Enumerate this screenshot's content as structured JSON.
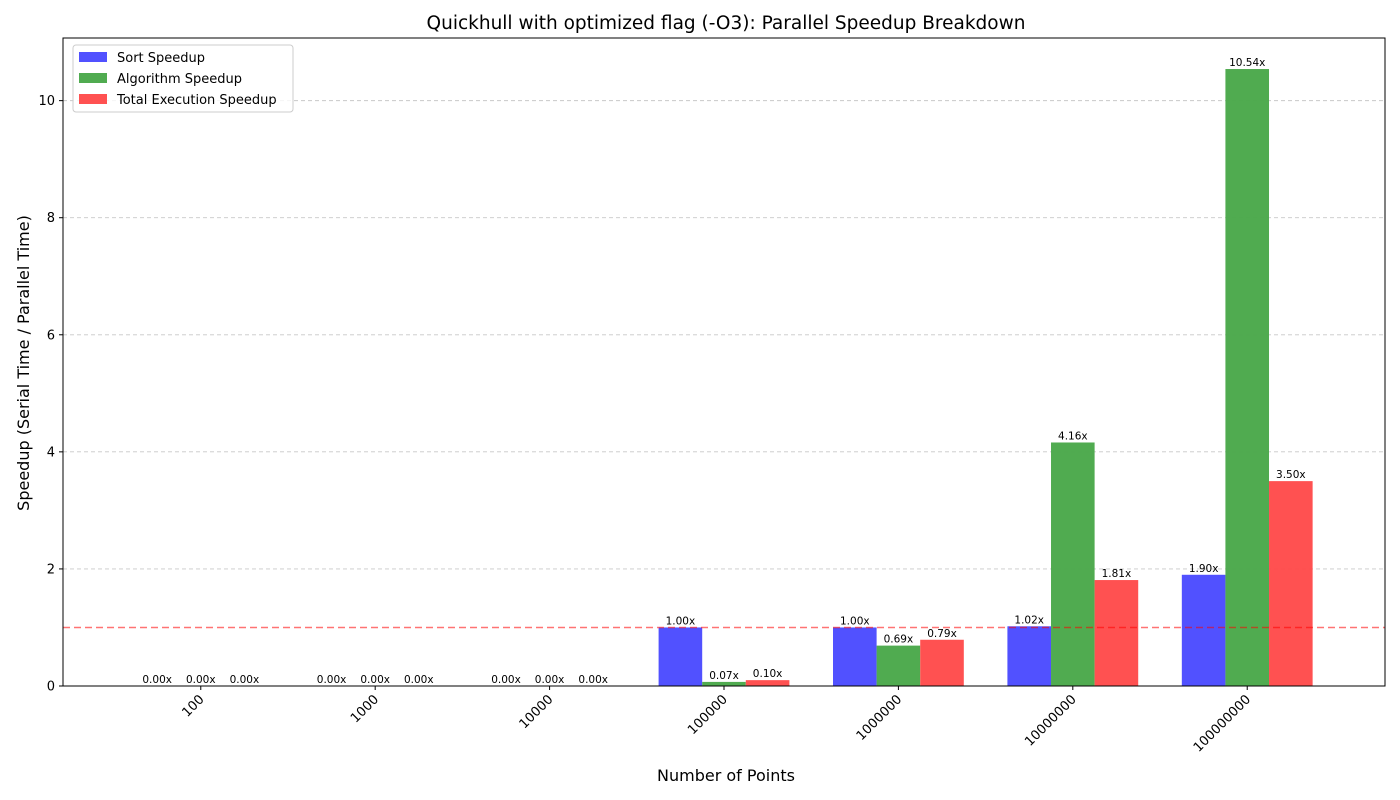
{
  "chart_data": {
    "type": "bar",
    "title": "Quickhull with optimized flag (-O3): Parallel Speedup Breakdown",
    "xlabel": "Number of Points",
    "ylabel": "Speedup (Serial Time / Parallel Time)",
    "categories": [
      "100",
      "1000",
      "10000",
      "100000",
      "1000000",
      "10000000",
      "100000000"
    ],
    "series": [
      {
        "name": "Sort Speedup",
        "color": "#4b4bff",
        "values": [
          0.0,
          0.0,
          0.0,
          1.0,
          1.0,
          1.02,
          1.9
        ],
        "labels": [
          "0.00x",
          "0.00x",
          "0.00x",
          "1.00x",
          "1.00x",
          "1.02x",
          "1.90x"
        ]
      },
      {
        "name": "Algorithm Speedup",
        "color": "#4aa84a",
        "values": [
          0.0,
          0.0,
          0.0,
          0.07,
          0.69,
          4.16,
          10.54
        ],
        "labels": [
          "0.00x",
          "0.00x",
          "0.00x",
          "0.07x",
          "0.69x",
          "4.16x",
          "10.54x"
        ]
      },
      {
        "name": "Total Execution Speedup",
        "color": "#ff4b4b",
        "values": [
          0.0,
          0.0,
          0.0,
          0.1,
          0.79,
          1.81,
          3.5
        ],
        "labels": [
          "0.00x",
          "0.00x",
          "0.00x",
          "0.10x",
          "0.79x",
          "1.81x",
          "3.50x"
        ]
      }
    ],
    "ylim": [
      0,
      11.07
    ],
    "yticks": [
      0,
      2,
      4,
      6,
      8,
      10
    ],
    "ytick_labels": [
      "0",
      "2",
      "4",
      "6",
      "8",
      "10"
    ],
    "reference_line": {
      "y": 1.0,
      "color": "#ff0000",
      "style": "dashed"
    },
    "grid": {
      "y": true,
      "x": false,
      "style": "dashed"
    },
    "legend_position": "top-left",
    "xtick_rotation_deg": 45
  }
}
